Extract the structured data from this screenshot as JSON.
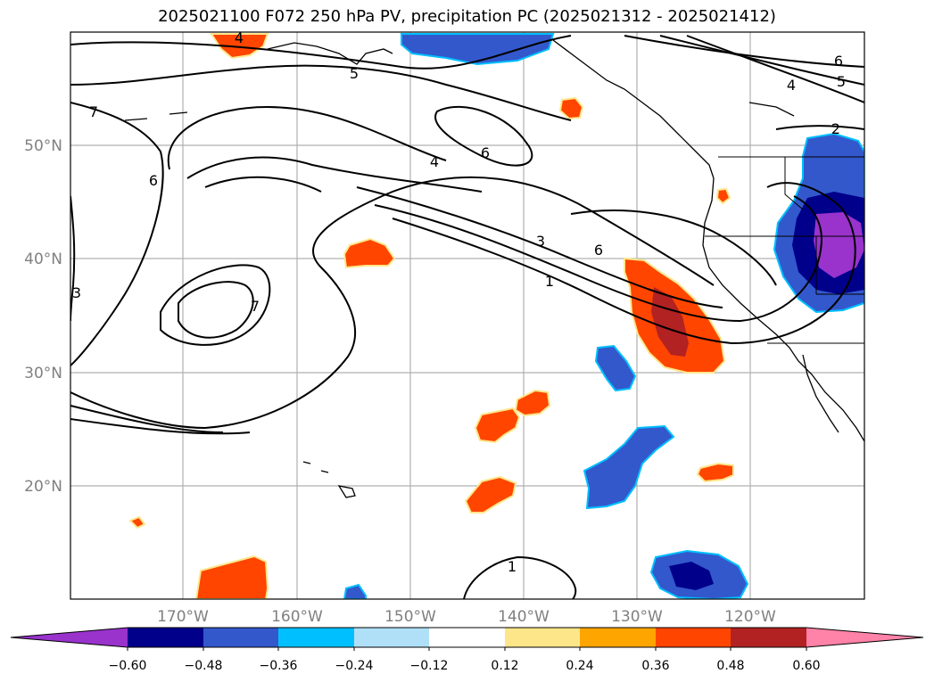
{
  "title": "2025021100 F072 250 hPa PV, precipitation PC (2025021312 - 2025021412)",
  "map": {
    "lat_labels": [
      "50°N",
      "40°N",
      "30°N",
      "20°N"
    ],
    "lon_labels": [
      "170°W",
      "160°W",
      "150°W",
      "140°W",
      "130°W",
      "120°W"
    ]
  },
  "pv_contour_labels": [
    "4",
    "5",
    "6",
    "4",
    "5",
    "2",
    "7",
    "6",
    "6",
    "4",
    "3",
    "6",
    "1",
    "7",
    "3",
    "1"
  ],
  "colorbar": {
    "colors": [
      "#9933cc",
      "#00008b",
      "#3358cc",
      "#00bfff",
      "#b0e0f8",
      "#ffffff",
      "#fde68a",
      "#ffa500",
      "#ff4500",
      "#b22222",
      "#ff82a8"
    ],
    "tick_labels": [
      "−0.60",
      "−0.48",
      "−0.36",
      "−0.24",
      "−0.12",
      "0.12",
      "0.24",
      "0.36",
      "0.48",
      "0.60"
    ]
  }
}
